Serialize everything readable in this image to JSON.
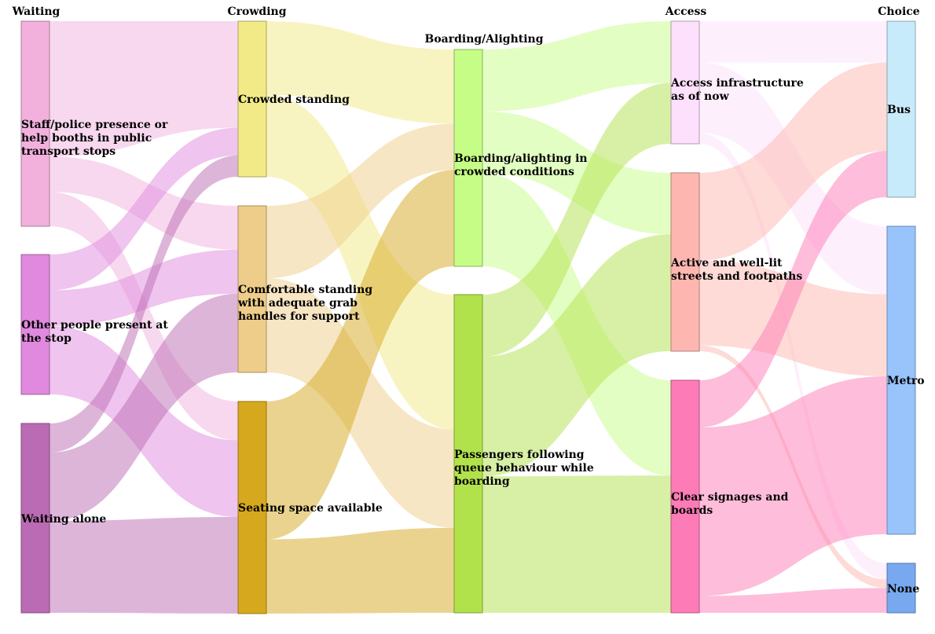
{
  "diagram": {
    "type": "sankey",
    "columns": [
      "Waiting",
      "Crowding",
      "Boarding/Alighting",
      "Access",
      "Choice"
    ],
    "nodes": [
      {
        "id": "waiting-staff",
        "label": "Staff/police presence or help booths in public transport stops",
        "color": "#f2b1dd"
      },
      {
        "id": "waiting-others",
        "label": "Other people present at the stop",
        "color": "#e089de"
      },
      {
        "id": "waiting-alone",
        "label": "Waiting alone",
        "color": "#bb6bb3"
      },
      {
        "id": "crowd-standing",
        "label": "Crowded standing",
        "color": "#f2ea86"
      },
      {
        "id": "crowd-comfortable",
        "label": "Comfortable standing with adequate grab handles for support",
        "color": "#eecd8a"
      },
      {
        "id": "crowd-seating",
        "label": "Seating space available",
        "color": "#d6a81e"
      },
      {
        "id": "board-crowded",
        "label": "Boarding/alighting in crowded conditions",
        "color": "#c6fd86"
      },
      {
        "id": "board-queue",
        "label": "Passengers following queue behaviour while boarding",
        "color": "#b1e24c"
      },
      {
        "id": "access-now",
        "label": "Access infrastructure as of now",
        "color": "#fde0fb"
      },
      {
        "id": "access-streets",
        "label": "Active and well-lit streets and footpaths",
        "color": "#fdb7b0"
      },
      {
        "id": "access-signage",
        "label": "Clear signages and boards",
        "color": "#fd7bb6"
      },
      {
        "id": "choice-bus",
        "label": "Bus",
        "color": "#c8ebfb"
      },
      {
        "id": "choice-metro",
        "label": "Metro",
        "color": "#98c3fb"
      },
      {
        "id": "choice-none",
        "label": "None",
        "color": "#78a9f0"
      }
    ],
    "links": [
      {
        "source": "waiting-staff",
        "target": "crowd-standing",
        "value": 13,
        "color": "#f2b1dd"
      },
      {
        "source": "waiting-staff",
        "target": "crowd-comfortable",
        "value": 3.4,
        "color": "#f2b1dd"
      },
      {
        "source": "waiting-staff",
        "target": "crowd-seating",
        "value": 3.3,
        "color": "#f2b1dd"
      },
      {
        "source": "waiting-others",
        "target": "crowd-standing",
        "value": 3.4,
        "color": "#e089de"
      },
      {
        "source": "waiting-others",
        "target": "crowd-comfortable",
        "value": 3.4,
        "color": "#e089de"
      },
      {
        "source": "waiting-others",
        "target": "crowd-seating",
        "value": 6.5,
        "color": "#e089de"
      },
      {
        "source": "waiting-alone",
        "target": "crowd-standing",
        "value": 2.6,
        "color": "#bb6bb3"
      },
      {
        "source": "waiting-alone",
        "target": "crowd-comfortable",
        "value": 6.1,
        "color": "#bb6bb3"
      },
      {
        "source": "waiting-alone",
        "target": "crowd-seating",
        "value": 8.2,
        "color": "#bb6bb3"
      },
      {
        "source": "crowd-standing",
        "target": "board-crowded",
        "value": 9.0,
        "color": "#f2ea86"
      },
      {
        "source": "crowd-standing",
        "target": "board-queue",
        "value": 10.0,
        "color": "#f2ea86"
      },
      {
        "source": "crowd-comfortable",
        "target": "board-crowded",
        "value": 5.6,
        "color": "#eecd8a"
      },
      {
        "source": "crowd-comfortable",
        "target": "board-queue",
        "value": 7.3,
        "color": "#eecd8a"
      },
      {
        "source": "crowd-seating",
        "target": "board-crowded",
        "value": 11.7,
        "color": "#d6a81e"
      },
      {
        "source": "crowd-seating",
        "target": "board-queue",
        "value": 6.3,
        "color": "#d6a81e"
      },
      {
        "source": "board-crowded",
        "target": "access-now",
        "value": 7.5,
        "color": "#c6fd86"
      },
      {
        "source": "board-crowded",
        "target": "access-streets",
        "value": 7.5,
        "color": "#c6fd86"
      },
      {
        "source": "board-crowded",
        "target": "access-signage",
        "value": 11.3,
        "color": "#c6fd86"
      },
      {
        "source": "board-queue",
        "target": "access-now",
        "value": 7.4,
        "color": "#b1e24c"
      },
      {
        "source": "board-queue",
        "target": "access-streets",
        "value": 14.3,
        "color": "#b1e24c"
      },
      {
        "source": "board-queue",
        "target": "access-signage",
        "value": 16.3,
        "color": "#b1e24c"
      },
      {
        "source": "access-now",
        "target": "bus",
        "value": 0,
        "color": "#fde0fb"
      },
      {
        "source": "access-now",
        "target": "choice-bus",
        "value": 5.0,
        "color": "#fde0fb"
      },
      {
        "source": "access-now",
        "target": "choice-metro",
        "value": 8.6,
        "color": "#fde0fb"
      },
      {
        "source": "access-now",
        "target": "choice-none",
        "value": 1.3,
        "color": "#fde0fb"
      },
      {
        "source": "access-streets",
        "target": "choice-bus",
        "value": 10.7,
        "color": "#fdb7b0"
      },
      {
        "source": "access-streets",
        "target": "choice-metro",
        "value": 10.4,
        "color": "#fdb7b0"
      },
      {
        "source": "access-streets",
        "target": "choice-none",
        "value": 0.7,
        "color": "#fdb7b0"
      },
      {
        "source": "access-signage",
        "target": "choice-bus",
        "value": 5.6,
        "color": "#fd7bb6"
      },
      {
        "source": "access-signage",
        "target": "choice-metro",
        "value": 20.0,
        "color": "#fd7bb6"
      },
      {
        "source": "access-signage",
        "target": "choice-none",
        "value": 2.0,
        "color": "#fd7bb6"
      }
    ]
  }
}
